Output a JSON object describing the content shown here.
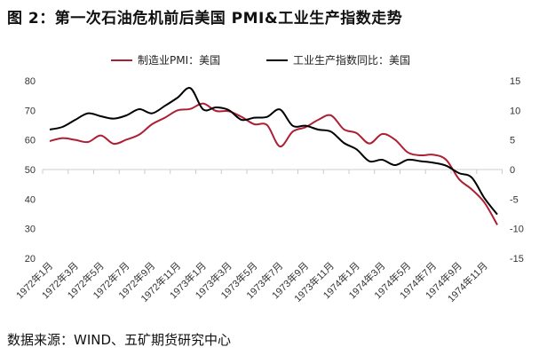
{
  "chart_data": {
    "type": "line",
    "title": "图 2：第一次石油危机前后美国 PMI&工业生产指数走势",
    "source": "数据来源：WIND、五矿期货研究中心",
    "x": [
      "1972年1月",
      "1972年2月",
      "1972年3月",
      "1972年4月",
      "1972年5月",
      "1972年6月",
      "1972年7月",
      "1972年8月",
      "1972年9月",
      "1972年10月",
      "1972年11月",
      "1972年12月",
      "1973年1月",
      "1973年2月",
      "1973年3月",
      "1973年4月",
      "1973年5月",
      "1973年6月",
      "1973年7月",
      "1973年8月",
      "1973年9月",
      "1973年10月",
      "1973年11月",
      "1973年12月",
      "1974年1月",
      "1974年2月",
      "1974年3月",
      "1974年4月",
      "1974年5月",
      "1974年6月",
      "1974年7月",
      "1974年8月",
      "1974年9月",
      "1974年10月",
      "1974年11月",
      "1974年12月"
    ],
    "x_tick_labels": [
      "1972年1月",
      "1972年3月",
      "1972年5月",
      "1972年7月",
      "1972年9月",
      "1972年11月",
      "1973年1月",
      "1973年3月",
      "1973年5月",
      "1973年7月",
      "1973年9月",
      "1973年11月",
      "1974年1月",
      "1974年3月",
      "1974年5月",
      "1974年7月",
      "1974年9月",
      "1974年11月"
    ],
    "left_axis": {
      "range": [
        20,
        80
      ],
      "ticks": [
        "80",
        "70",
        "60",
        "50",
        "40",
        "30",
        "20"
      ]
    },
    "right_axis": {
      "range": [
        -15,
        15
      ],
      "ticks": [
        "15",
        "10",
        "5",
        "0",
        "-5",
        "-10",
        "-15"
      ]
    },
    "legend_position": "top",
    "grid": false,
    "series": [
      {
        "name": "制造业PMI：美国",
        "axis": "left",
        "color": "#ad1f33",
        "values": [
          59.6,
          60.6,
          60.0,
          59.3,
          61.5,
          58.7,
          60.1,
          61.8,
          65.3,
          67.5,
          70.0,
          70.5,
          72.3,
          69.8,
          69.7,
          67.8,
          65.3,
          65.0,
          57.8,
          62.8,
          64.3,
          66.8,
          68.3,
          63.6,
          62.3,
          58.8,
          62.0,
          60.1,
          55.8,
          54.8,
          55.0,
          53.3,
          46.8,
          43.3,
          38.8,
          31.3
        ]
      },
      {
        "name": "工业生产指数同比：美国",
        "axis": "right",
        "color": "#000000",
        "values": [
          6.75,
          7.2,
          8.4,
          9.5,
          9.0,
          8.6,
          9.15,
          10.2,
          9.5,
          10.75,
          12.15,
          13.75,
          10.15,
          10.5,
          10.05,
          8.4,
          8.75,
          8.9,
          10.15,
          7.4,
          7.4,
          6.75,
          6.4,
          4.5,
          3.4,
          1.4,
          1.65,
          0.75,
          1.65,
          1.4,
          1.15,
          0.65,
          -0.6,
          -1.35,
          -4.85,
          -7.6
        ]
      }
    ]
  }
}
